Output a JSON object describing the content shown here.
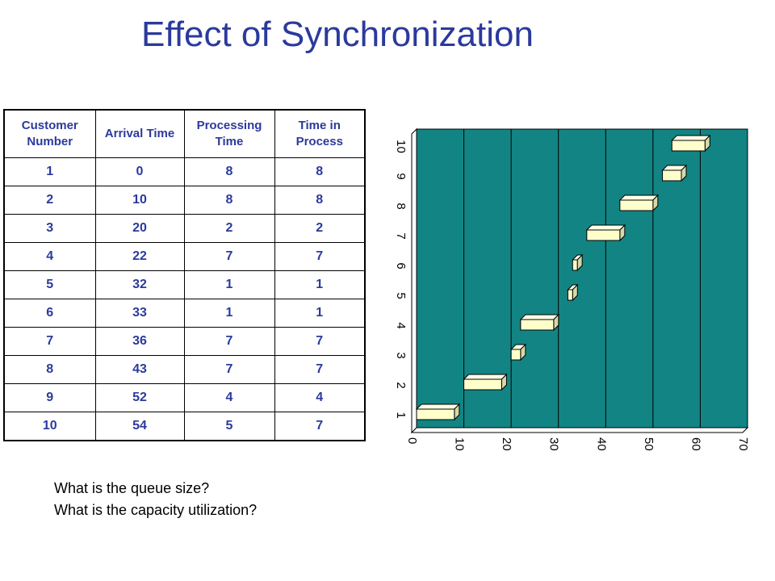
{
  "title": "Effect of Synchronization",
  "table": {
    "headers": [
      "Customer Number",
      "Arrival Time",
      "Processing Time",
      "Time in Process"
    ],
    "rows": [
      [
        "1",
        "0",
        "8",
        "8"
      ],
      [
        "2",
        "10",
        "8",
        "8"
      ],
      [
        "3",
        "20",
        "2",
        "2"
      ],
      [
        "4",
        "22",
        "7",
        "7"
      ],
      [
        "5",
        "32",
        "1",
        "1"
      ],
      [
        "6",
        "33",
        "1",
        "1"
      ],
      [
        "7",
        "36",
        "7",
        "7"
      ],
      [
        "8",
        "43",
        "7",
        "7"
      ],
      [
        "9",
        "52",
        "4",
        "4"
      ],
      [
        "10",
        "54",
        "5",
        "7"
      ]
    ]
  },
  "questions": [
    "What is the queue size?",
    "What is the capacity utilization?"
  ],
  "colors": {
    "title": "#2b3a9c",
    "table_text": "#2b3a9c",
    "plot_background": "#138484",
    "bar_fill": "#ffffcc"
  },
  "chart_data": {
    "type": "bar",
    "orientation": "horizontal",
    "style": "3d-gantt",
    "x_ticks": [
      "0",
      "10",
      "20",
      "30",
      "40",
      "50",
      "60",
      "70"
    ],
    "y_ticks": [
      "1",
      "2",
      "3",
      "4",
      "5",
      "6",
      "7",
      "8",
      "9",
      "10"
    ],
    "xlim": [
      0,
      70
    ],
    "ylim": [
      0.5,
      10.5
    ],
    "grid": "vertical",
    "bars": [
      {
        "y": 1,
        "start": 0,
        "end": 8
      },
      {
        "y": 2,
        "start": 10,
        "end": 18
      },
      {
        "y": 3,
        "start": 20,
        "end": 22
      },
      {
        "y": 4,
        "start": 22,
        "end": 29
      },
      {
        "y": 5,
        "start": 32,
        "end": 33
      },
      {
        "y": 6,
        "start": 33,
        "end": 34
      },
      {
        "y": 7,
        "start": 36,
        "end": 43
      },
      {
        "y": 8,
        "start": 43,
        "end": 50
      },
      {
        "y": 9,
        "start": 52,
        "end": 56
      },
      {
        "y": 10,
        "start": 54,
        "end": 61
      }
    ]
  }
}
